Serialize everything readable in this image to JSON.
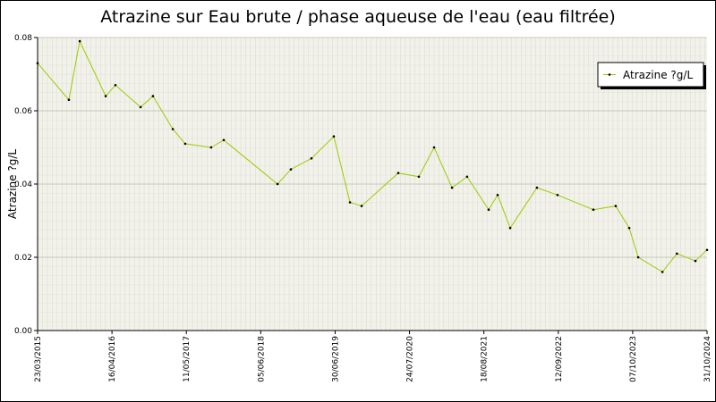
{
  "chart_data": {
    "type": "line",
    "title": "Atrazine sur Eau brute / phase aqueuse de l'eau (eau filtrée)",
    "y_label": "Atrazine ?g/L",
    "x": [
      "2015-03-23",
      "2015-09-03",
      "2015-10-30",
      "2016-03-14",
      "2016-05-04",
      "2016-09-13",
      "2016-11-17",
      "2017-03-01",
      "2017-05-05",
      "2017-09-18",
      "2017-11-23",
      "2018-09-01",
      "2018-11-10",
      "2019-02-26",
      "2019-06-23",
      "2019-09-16",
      "2019-11-16",
      "2020-05-26",
      "2020-09-11",
      "2020-11-30",
      "2021-03-04",
      "2021-05-22",
      "2021-09-12",
      "2021-10-29",
      "2022-01-03",
      "2022-05-23",
      "2022-09-08",
      "2023-03-15",
      "2023-07-10",
      "2023-09-19",
      "2023-11-05",
      "2024-03-11",
      "2024-05-26",
      "2024-08-31",
      "2024-10-31"
    ],
    "series": [
      {
        "name": "Atrazine ?g/L",
        "color": "#99cc00",
        "marker_color": "#000000",
        "values": [
          0.073,
          0.063,
          0.079,
          0.064,
          0.067,
          0.061,
          0.064,
          0.055,
          0.051,
          0.05,
          0.052,
          0.04,
          0.044,
          0.047,
          0.053,
          0.035,
          0.034,
          0.043,
          0.042,
          0.05,
          0.039,
          0.042,
          0.033,
          0.037,
          0.028,
          0.039,
          0.037,
          0.033,
          0.034,
          0.028,
          0.02,
          0.016,
          0.021,
          0.019,
          0.022
        ]
      }
    ],
    "xlim": [
      "2015-03-23",
      "2024-10-31"
    ],
    "xticks": [
      {
        "value": "2015-03-23",
        "label": "23/03/2015"
      },
      {
        "value": "2016-04-16",
        "label": "16/04/2016"
      },
      {
        "value": "2017-05-11",
        "label": "11/05/2017"
      },
      {
        "value": "2018-06-05",
        "label": "05/06/2018"
      },
      {
        "value": "2019-06-30",
        "label": "30/06/2019"
      },
      {
        "value": "2020-07-24",
        "label": "24/07/2020"
      },
      {
        "value": "2021-08-18",
        "label": "18/08/2021"
      },
      {
        "value": "2022-09-12",
        "label": "12/09/2022"
      },
      {
        "value": "2023-10-07",
        "label": "07/10/2023"
      },
      {
        "value": "2024-10-31",
        "label": "31/10/2024"
      }
    ],
    "ylim": [
      0,
      0.08
    ],
    "yticks": [
      {
        "value": 0,
        "label": "0.00"
      },
      0.02,
      0.04,
      0.06,
      0.08
    ],
    "grid": true,
    "legend": "top-right"
  }
}
